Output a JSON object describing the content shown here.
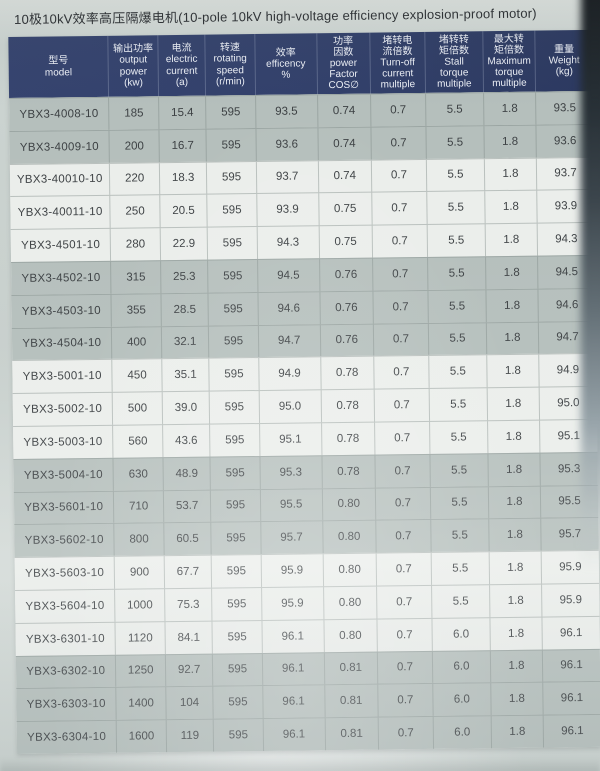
{
  "page": {
    "title": "10极10kV效率高压隔爆电机(10-pole 10kV high-voltage efficiency explosion-proof motor)"
  },
  "table": {
    "headers": [
      {
        "zh": "型号",
        "en": "model"
      },
      {
        "zh": "输出功率",
        "en": "output\npower\n(kw)"
      },
      {
        "zh": "电流",
        "en": "electric\ncurrent\n(a)"
      },
      {
        "zh": "转速",
        "en": "rotating\nspeed\n(r/min)"
      },
      {
        "zh": "效率",
        "en": "efficency\n%"
      },
      {
        "zh": "功率\n因数",
        "en": "power\nFactor\nCOS∅"
      },
      {
        "zh": "堵转电\n流倍数",
        "en": "Turn-off\ncurrent\nmultiple"
      },
      {
        "zh": "堵转转\n矩倍数",
        "en": "Stall\ntorque\nmultiple"
      },
      {
        "zh": "最大转\n矩倍数",
        "en": "Maximum\ntorque\nmultiple"
      },
      {
        "zh": "重量",
        "en": "Weight\n(kg)"
      }
    ],
    "rows": [
      [
        "YBX3-4008-10",
        "185",
        "15.4",
        "595",
        "93.5",
        "0.74",
        "0.7",
        "5.5",
        "1.8",
        "93.5"
      ],
      [
        "YBX3-4009-10",
        "200",
        "16.7",
        "595",
        "93.6",
        "0.74",
        "0.7",
        "5.5",
        "1.8",
        "93.6"
      ],
      [
        "YBX3-40010-10",
        "220",
        "18.3",
        "595",
        "93.7",
        "0.74",
        "0.7",
        "5.5",
        "1.8",
        "93.7"
      ],
      [
        "YBX3-40011-10",
        "250",
        "20.5",
        "595",
        "93.9",
        "0.75",
        "0.7",
        "5.5",
        "1.8",
        "93.9"
      ],
      [
        "YBX3-4501-10",
        "280",
        "22.9",
        "595",
        "94.3",
        "0.75",
        "0.7",
        "5.5",
        "1.8",
        "94.3"
      ],
      [
        "YBX3-4502-10",
        "315",
        "25.3",
        "595",
        "94.5",
        "0.76",
        "0.7",
        "5.5",
        "1.8",
        "94.5"
      ],
      [
        "YBX3-4503-10",
        "355",
        "28.5",
        "595",
        "94.6",
        "0.76",
        "0.7",
        "5.5",
        "1.8",
        "94.6"
      ],
      [
        "YBX3-4504-10",
        "400",
        "32.1",
        "595",
        "94.7",
        "0.76",
        "0.7",
        "5.5",
        "1.8",
        "94.7"
      ],
      [
        "YBX3-5001-10",
        "450",
        "35.1",
        "595",
        "94.9",
        "0.78",
        "0.7",
        "5.5",
        "1.8",
        "94.9"
      ],
      [
        "YBX3-5002-10",
        "500",
        "39.0",
        "595",
        "95.0",
        "0.78",
        "0.7",
        "5.5",
        "1.8",
        "95.0"
      ],
      [
        "YBX3-5003-10",
        "560",
        "43.6",
        "595",
        "95.1",
        "0.78",
        "0.7",
        "5.5",
        "1.8",
        "95.1"
      ],
      [
        "YBX3-5004-10",
        "630",
        "48.9",
        "595",
        "95.3",
        "0.78",
        "0.7",
        "5.5",
        "1.8",
        "95.3"
      ],
      [
        "YBX3-5601-10",
        "710",
        "53.7",
        "595",
        "95.5",
        "0.80",
        "0.7",
        "5.5",
        "1.8",
        "95.5"
      ],
      [
        "YBX3-5602-10",
        "800",
        "60.5",
        "595",
        "95.7",
        "0.80",
        "0.7",
        "5.5",
        "1.8",
        "95.7"
      ],
      [
        "YBX3-5603-10",
        "900",
        "67.7",
        "595",
        "95.9",
        "0.80",
        "0.7",
        "5.5",
        "1.8",
        "95.9"
      ],
      [
        "YBX3-5604-10",
        "1000",
        "75.3",
        "595",
        "95.9",
        "0.80",
        "0.7",
        "5.5",
        "1.8",
        "95.9"
      ],
      [
        "YBX3-6301-10",
        "1120",
        "84.1",
        "595",
        "96.1",
        "0.80",
        "0.7",
        "6.0",
        "1.8",
        "96.1"
      ],
      [
        "YBX3-6302-10",
        "1250",
        "92.7",
        "595",
        "96.1",
        "0.81",
        "0.7",
        "6.0",
        "1.8",
        "96.1"
      ],
      [
        "YBX3-6303-10",
        "1400",
        "104",
        "595",
        "96.1",
        "0.81",
        "0.7",
        "6.0",
        "1.8",
        "96.1"
      ],
      [
        "YBX3-6304-10",
        "1600",
        "119",
        "595",
        "96.1",
        "0.81",
        "0.7",
        "6.0",
        "1.8",
        "96.1"
      ]
    ]
  },
  "colors": {
    "page_bg": "#ccd4d1",
    "header_bg": "#32406b",
    "header_text": "#eef1f8",
    "row_light": "#ebeeeb",
    "row_shaded": "#b5bfbc",
    "edge_shadow": "#14181c"
  }
}
